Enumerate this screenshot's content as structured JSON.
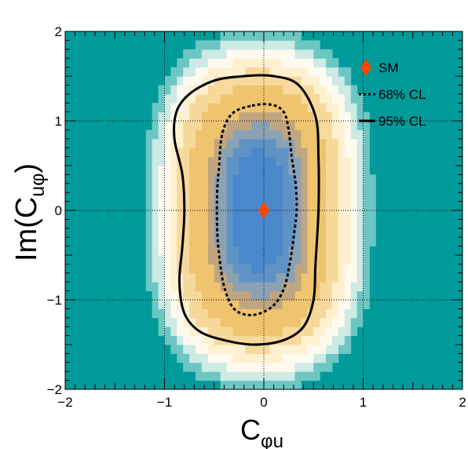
{
  "chart_data": {
    "type": "heatmap",
    "title": "",
    "xlabel": {
      "main": "C",
      "sub": "φu"
    },
    "ylabel": {
      "pre": "Im(C",
      "sub": "uφ",
      "post": ")"
    },
    "xlim": [
      -2,
      2
    ],
    "ylim": [
      -2,
      2
    ],
    "x_major_ticks": [
      -2,
      -1,
      0,
      1,
      2
    ],
    "y_major_ticks": [
      -2,
      -1,
      0,
      1,
      2
    ],
    "x_tick_labels": [
      "−2",
      "−1",
      "0",
      "1",
      "2"
    ],
    "y_tick_labels": [
      "−2",
      "−1",
      "0",
      "1",
      "2"
    ],
    "grid": true,
    "grid_style": "dotted",
    "legend_placement": "top-right",
    "colors": {
      "background": "#009a9a",
      "palette": [
        "#009a9a",
        "#6cc7c3",
        "#cdeae5",
        "#fffaf0",
        "#fff0d0",
        "#f6d99b",
        "#efc46e",
        "#c0a680",
        "#8aa2b3",
        "#5f93c6",
        "#4a88cc"
      ],
      "sm_marker": "#ff4500",
      "contour": "#000000"
    },
    "heatmap_model": {
      "description_of_levels": "blue core near x≈0; yellow band 68–95%; white/teal fade outside",
      "center": [
        -0.05,
        0.0
      ],
      "half_width_x": 0.78,
      "half_height_y": 1.5,
      "x_bins": 64,
      "y_bins": 40
    },
    "series": [
      {
        "name": "SM",
        "type": "point",
        "marker": "diamond",
        "points": [
          [
            0.0,
            0.0
          ]
        ]
      },
      {
        "name": "68% CL",
        "type": "contour",
        "line": "dotted",
        "points": [
          [
            -0.12,
            1.17
          ],
          [
            0.08,
            1.18
          ],
          [
            0.2,
            1.1
          ],
          [
            0.25,
            0.9
          ],
          [
            0.28,
            0.6
          ],
          [
            0.32,
            0.3
          ],
          [
            0.33,
            0.0
          ],
          [
            0.3,
            -0.3
          ],
          [
            0.26,
            -0.6
          ],
          [
            0.2,
            -0.88
          ],
          [
            0.08,
            -1.08
          ],
          [
            -0.12,
            -1.17
          ],
          [
            -0.3,
            -1.1
          ],
          [
            -0.4,
            -0.85
          ],
          [
            -0.45,
            -0.5
          ],
          [
            -0.47,
            -0.2
          ],
          [
            -0.47,
            0.2
          ],
          [
            -0.45,
            0.5
          ],
          [
            -0.42,
            0.85
          ],
          [
            -0.32,
            1.08
          ],
          [
            -0.12,
            1.17
          ]
        ]
      },
      {
        "name": "95% CL",
        "type": "contour",
        "line": "solid",
        "points": [
          [
            -0.2,
            1.5
          ],
          [
            0.1,
            1.5
          ],
          [
            0.35,
            1.4
          ],
          [
            0.52,
            1.05
          ],
          [
            0.55,
            0.6
          ],
          [
            0.55,
            0.0
          ],
          [
            0.52,
            -0.6
          ],
          [
            0.5,
            -1.0
          ],
          [
            0.4,
            -1.3
          ],
          [
            0.2,
            -1.45
          ],
          [
            -0.1,
            -1.5
          ],
          [
            -0.4,
            -1.45
          ],
          [
            -0.65,
            -1.35
          ],
          [
            -0.8,
            -1.15
          ],
          [
            -0.85,
            -0.8
          ],
          [
            -0.82,
            -0.4
          ],
          [
            -0.8,
            0.0
          ],
          [
            -0.82,
            0.4
          ],
          [
            -0.9,
            0.8
          ],
          [
            -0.88,
            1.1
          ],
          [
            -0.75,
            1.3
          ],
          [
            -0.5,
            1.45
          ],
          [
            -0.2,
            1.5
          ]
        ]
      }
    ],
    "legend": [
      {
        "label": "SM",
        "symbol": "diamond"
      },
      {
        "label": "68% CL",
        "symbol": "dotted-line"
      },
      {
        "label": "95% CL",
        "symbol": "solid-line"
      }
    ]
  }
}
